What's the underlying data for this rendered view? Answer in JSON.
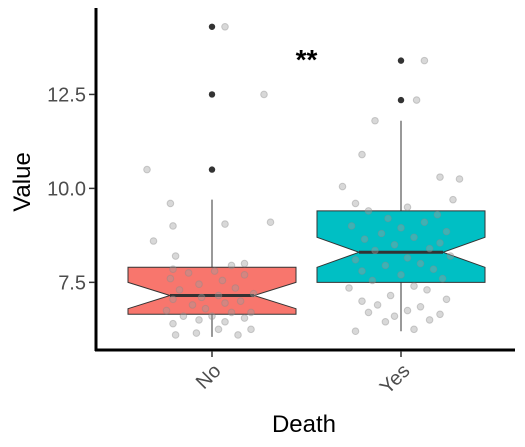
{
  "chart_data": {
    "type": "boxplot",
    "xlabel": "Death",
    "ylabel": "Value",
    "categories": [
      "No",
      "Yes"
    ],
    "ylim": [
      5.7,
      14.8
    ],
    "yticks": [
      7.5,
      10.0,
      12.5
    ],
    "ytick_labels": [
      "7.5",
      "10.0",
      "12.5"
    ],
    "notched": true,
    "grid": false,
    "legend": "none",
    "groups": [
      {
        "category": "No",
        "color": "#F8766D",
        "q1": 6.65,
        "median": 7.15,
        "q3": 7.9,
        "notch_low": 6.8,
        "notch_high": 7.5,
        "whisker_low": 6.05,
        "whisker_high": 9.7,
        "outliers": [
          10.5,
          12.5,
          14.3
        ],
        "points": [
          [
            -0.28,
            6.1
          ],
          [
            -0.12,
            6.15
          ],
          [
            0.05,
            6.25
          ],
          [
            0.2,
            6.1
          ],
          [
            0.3,
            6.25
          ],
          [
            -0.3,
            6.4
          ],
          [
            -0.1,
            6.5
          ],
          [
            0.1,
            6.45
          ],
          [
            0.25,
            6.55
          ],
          [
            -0.22,
            6.6
          ],
          [
            0.0,
            6.6
          ],
          [
            0.15,
            6.7
          ],
          [
            -0.35,
            6.75
          ],
          [
            -0.05,
            6.8
          ],
          [
            0.3,
            6.7
          ],
          [
            -0.15,
            6.9
          ],
          [
            0.1,
            6.95
          ],
          [
            -0.3,
            7.05
          ],
          [
            0.22,
            7.0
          ],
          [
            -0.08,
            7.1
          ],
          [
            0.05,
            7.15
          ],
          [
            0.32,
            7.2
          ],
          [
            -0.25,
            7.3
          ],
          [
            0.18,
            7.35
          ],
          [
            -0.1,
            7.45
          ],
          [
            0.08,
            7.55
          ],
          [
            -0.32,
            7.6
          ],
          [
            0.25,
            7.7
          ],
          [
            -0.18,
            7.75
          ],
          [
            0.02,
            7.8
          ],
          [
            -0.3,
            7.85
          ],
          [
            0.15,
            7.95
          ],
          [
            0.25,
            8.0
          ],
          [
            -0.28,
            8.2
          ],
          [
            -0.45,
            8.6
          ],
          [
            0.1,
            9.05
          ],
          [
            -0.3,
            9.0
          ],
          [
            0.45,
            9.1
          ],
          [
            -0.32,
            9.6
          ],
          [
            -0.5,
            10.5
          ],
          [
            0.4,
            12.5
          ],
          [
            0.1,
            14.3
          ]
        ]
      },
      {
        "category": "Yes",
        "color": "#00BFC4",
        "q1": 7.5,
        "median": 8.3,
        "q3": 9.4,
        "notch_low": 7.9,
        "notch_high": 8.7,
        "whisker_low": 6.2,
        "whisker_high": 11.8,
        "outliers": [
          12.35,
          13.4
        ],
        "points": [
          [
            -0.35,
            6.2
          ],
          [
            0.1,
            6.25
          ],
          [
            -0.12,
            6.45
          ],
          [
            0.22,
            6.5
          ],
          [
            -0.05,
            6.6
          ],
          [
            0.3,
            6.65
          ],
          [
            -0.25,
            6.7
          ],
          [
            0.05,
            6.75
          ],
          [
            0.15,
            6.85
          ],
          [
            -0.18,
            6.9
          ],
          [
            -0.3,
            7.0
          ],
          [
            0.35,
            7.05
          ],
          [
            -0.08,
            7.15
          ],
          [
            0.2,
            7.3
          ],
          [
            -0.4,
            7.35
          ],
          [
            0.1,
            7.4
          ],
          [
            -0.22,
            7.55
          ],
          [
            0.32,
            7.6
          ],
          [
            0.0,
            7.7
          ],
          [
            -0.3,
            7.8
          ],
          [
            0.25,
            7.85
          ],
          [
            -0.12,
            7.95
          ],
          [
            0.15,
            8.0
          ],
          [
            -0.35,
            8.1
          ],
          [
            0.05,
            8.15
          ],
          [
            0.38,
            8.2
          ],
          [
            -0.2,
            8.35
          ],
          [
            0.22,
            8.4
          ],
          [
            -0.05,
            8.5
          ],
          [
            0.3,
            8.55
          ],
          [
            -0.28,
            8.65
          ],
          [
            0.1,
            8.7
          ],
          [
            -0.15,
            8.8
          ],
          [
            0.35,
            8.85
          ],
          [
            0.0,
            8.95
          ],
          [
            -0.38,
            9.0
          ],
          [
            0.18,
            9.1
          ],
          [
            -0.1,
            9.2
          ],
          [
            0.28,
            9.3
          ],
          [
            -0.25,
            9.4
          ],
          [
            0.05,
            9.5
          ],
          [
            -0.35,
            9.6
          ],
          [
            0.4,
            9.7
          ],
          [
            -0.45,
            10.05
          ],
          [
            0.45,
            10.25
          ],
          [
            0.3,
            10.3
          ],
          [
            -0.3,
            10.9
          ],
          [
            -0.2,
            11.8
          ],
          [
            0.12,
            12.35
          ],
          [
            0.18,
            13.4
          ]
        ]
      }
    ],
    "annotations": [
      {
        "text": "**",
        "x_between": [
          "No",
          "Yes"
        ],
        "y": 13.6
      }
    ]
  }
}
